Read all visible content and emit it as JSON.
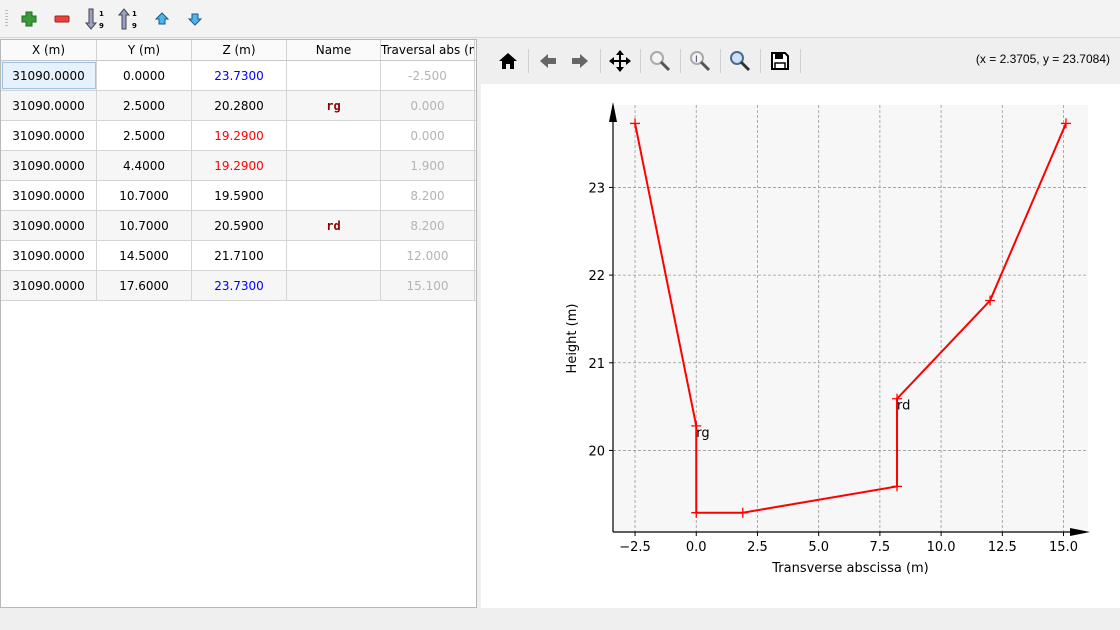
{
  "toolbar": {
    "icons": [
      "add-row-icon",
      "remove-row-icon",
      "sort-ascending-icon",
      "sort-descending-icon",
      "move-up-icon",
      "move-down-icon"
    ]
  },
  "table": {
    "columns": [
      "X (m)",
      "Y (m)",
      "Z (m)",
      "Name",
      "Traversal abs (m"
    ],
    "rows": [
      {
        "x": "31090.0000",
        "y": "0.0000",
        "z": "23.7300",
        "z_color": "#0000ff",
        "name": "",
        "trav": "-2.500"
      },
      {
        "x": "31090.0000",
        "y": "2.5000",
        "z": "20.2800",
        "z_color": "#000000",
        "name": "rg",
        "trav": "0.000"
      },
      {
        "x": "31090.0000",
        "y": "2.5000",
        "z": "19.2900",
        "z_color": "#ff0000",
        "name": "",
        "trav": "0.000"
      },
      {
        "x": "31090.0000",
        "y": "4.4000",
        "z": "19.2900",
        "z_color": "#ff0000",
        "name": "",
        "trav": "1.900"
      },
      {
        "x": "31090.0000",
        "y": "10.7000",
        "z": "19.5900",
        "z_color": "#000000",
        "name": "",
        "trav": "8.200"
      },
      {
        "x": "31090.0000",
        "y": "10.7000",
        "z": "20.5900",
        "z_color": "#000000",
        "name": "rd",
        "trav": "8.200"
      },
      {
        "x": "31090.0000",
        "y": "14.5000",
        "z": "21.7100",
        "z_color": "#000000",
        "name": "",
        "trav": "12.000"
      },
      {
        "x": "31090.0000",
        "y": "17.6000",
        "z": "23.7300",
        "z_color": "#0000ff",
        "name": "",
        "trav": "15.100"
      }
    ]
  },
  "plot_toolbar": {
    "coords": "(x = 2.3705,   y = 23.7084)"
  },
  "chart_data": {
    "type": "line",
    "xlabel": "Transverse abscissa (m)",
    "ylabel": "Height (m)",
    "xlim": [
      -3.4,
      16.0
    ],
    "ylim": [
      19.07,
      23.94
    ],
    "xticks": [
      -2.5,
      0,
      2.5,
      5,
      7.5,
      10,
      12.5,
      15
    ],
    "xtick_labels": [
      "−2.5",
      "0.0",
      "2.5",
      "5.0",
      "7.5",
      "10.0",
      "12.5",
      "15.0"
    ],
    "yticks": [
      20,
      21,
      22,
      23
    ],
    "ytick_labels": [
      "20",
      "21",
      "22",
      "23"
    ],
    "grid": true,
    "color": "#ff0000",
    "x": [
      -2.5,
      0,
      0,
      1.9,
      8.2,
      8.2,
      12,
      15.1
    ],
    "y": [
      23.73,
      20.28,
      19.29,
      19.29,
      19.59,
      20.59,
      21.71,
      23.73
    ],
    "annotations": [
      {
        "text": "rg",
        "x": 0,
        "y": 20.28
      },
      {
        "text": "rd",
        "x": 8.2,
        "y": 20.59
      }
    ]
  }
}
